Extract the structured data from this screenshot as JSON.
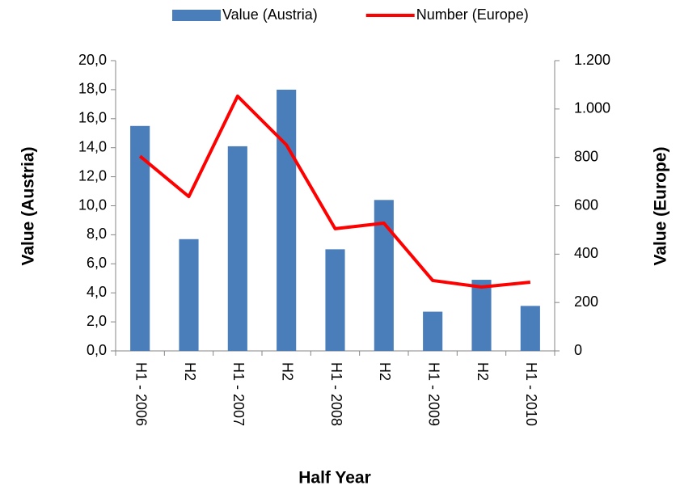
{
  "chart_data": {
    "type": "bar_line",
    "categories": [
      "H1 - 2006",
      "H2",
      "H1 - 2007",
      "H2",
      "H1 - 2008",
      "H2",
      "H1 - 2009",
      "H2",
      "H1 - 2010"
    ],
    "series": [
      {
        "name": "Value (Austria)",
        "type": "bar",
        "color": "#4a7ebb",
        "values": [
          15.5,
          7.7,
          14.1,
          18.0,
          7.0,
          10.4,
          2.7,
          4.9,
          3.1
        ]
      },
      {
        "name": "Number (Europe)",
        "type": "line",
        "axis": "y2",
        "color": "#ff0000",
        "values": [
          805,
          638,
          1053,
          852,
          505,
          528,
          291,
          264,
          284
        ]
      }
    ],
    "ylim": [
      0,
      20
    ],
    "yticks": [
      {
        "value": 0,
        "label": "0,0"
      },
      {
        "value": 2,
        "label": "2,0"
      },
      {
        "value": 4,
        "label": "4,0"
      },
      {
        "value": 6,
        "label": "6,0"
      },
      {
        "value": 8,
        "label": "8,0"
      },
      {
        "value": 10,
        "label": "10,0"
      },
      {
        "value": 12,
        "label": "12,0"
      },
      {
        "value": 14,
        "label": "14,0"
      },
      {
        "value": 16,
        "label": "16,0"
      },
      {
        "value": 18,
        "label": "18,0"
      },
      {
        "value": 20,
        "label": "20,0"
      }
    ],
    "y2lim": [
      0,
      1200
    ],
    "y2ticks": [
      0,
      200,
      400,
      600,
      800,
      {
        "value": 1000,
        "label": "1.000"
      },
      {
        "value": 1200,
        "label": "1.200"
      }
    ],
    "y_label": "Value (Austria)",
    "y2_label": "Value (Europe)",
    "x_label": "Half Year",
    "legend": "top",
    "grid": false
  }
}
